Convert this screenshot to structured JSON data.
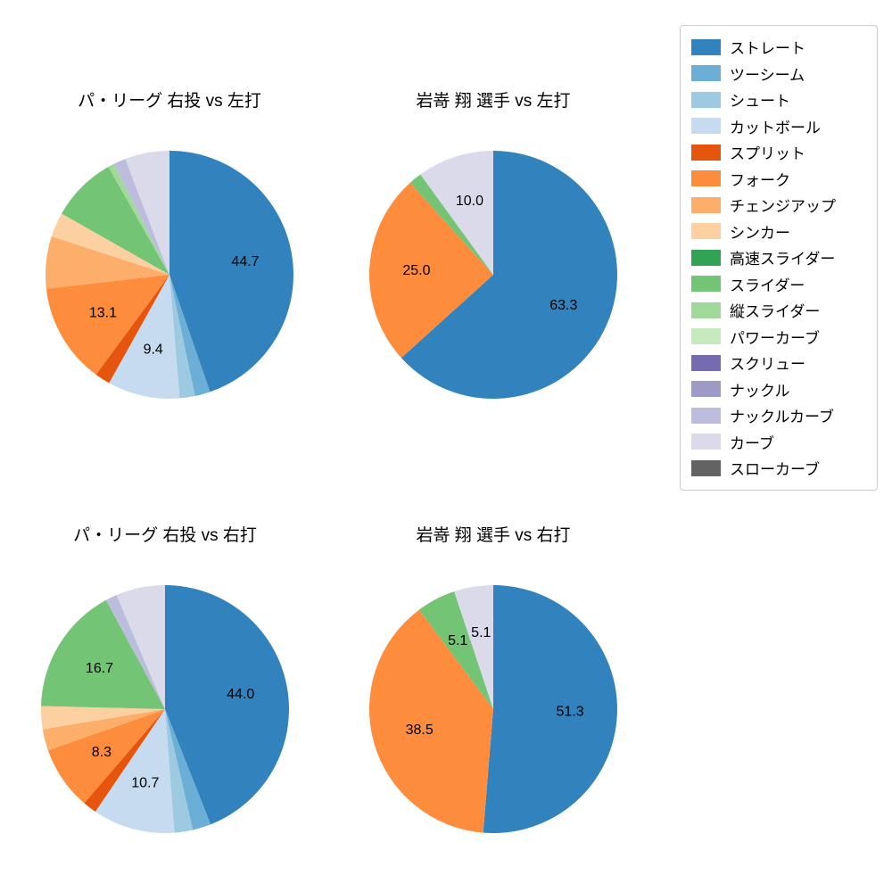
{
  "figure": {
    "background": "#ffffff"
  },
  "legend": {
    "position": "upper right",
    "items": [
      {
        "label": "ストレート",
        "color": "#3182bd"
      },
      {
        "label": "ツーシーム",
        "color": "#6baed6"
      },
      {
        "label": "シュート",
        "color": "#9ecae1"
      },
      {
        "label": "カットボール",
        "color": "#c6dbef"
      },
      {
        "label": "スプリット",
        "color": "#e6550d"
      },
      {
        "label": "フォーク",
        "color": "#fd8d3c"
      },
      {
        "label": "チェンジアップ",
        "color": "#fdae6b"
      },
      {
        "label": "シンカー",
        "color": "#fdd0a2"
      },
      {
        "label": "高速スライダー",
        "color": "#31a354"
      },
      {
        "label": "スライダー",
        "color": "#74c476"
      },
      {
        "label": "縦スライダー",
        "color": "#a1d99b"
      },
      {
        "label": "パワーカーブ",
        "color": "#c7e9c0"
      },
      {
        "label": "スクリュー",
        "color": "#756bb1"
      },
      {
        "label": "ナックル",
        "color": "#9e9ac8"
      },
      {
        "label": "ナックルカーブ",
        "color": "#bcbddc"
      },
      {
        "label": "カーブ",
        "color": "#dadaeb"
      },
      {
        "label": "スローカーブ",
        "color": "#636363"
      }
    ]
  },
  "chart_data": [
    {
      "type": "pie",
      "title": "パ・リーグ 右投 vs 左打",
      "start_angle": "top",
      "direction": "clockwise",
      "slices": [
        {
          "name": "ストレート",
          "value": 44.7,
          "label": "44.7"
        },
        {
          "name": "ツーシーム",
          "value": 2.0,
          "label": ""
        },
        {
          "name": "シュート",
          "value": 2.0,
          "label": ""
        },
        {
          "name": "カットボール",
          "value": 9.4,
          "label": "9.4"
        },
        {
          "name": "スプリット",
          "value": 2.0,
          "label": ""
        },
        {
          "name": "フォーク",
          "value": 13.1,
          "label": "13.1"
        },
        {
          "name": "チェンジアップ",
          "value": 6.8,
          "label": ""
        },
        {
          "name": "シンカー",
          "value": 3.2,
          "label": ""
        },
        {
          "name": "スライダー",
          "value": 8.6,
          "label": ""
        },
        {
          "name": "縦スライダー",
          "value": 0.8,
          "label": ""
        },
        {
          "name": "ナックルカーブ",
          "value": 1.6,
          "label": ""
        },
        {
          "name": "カーブ",
          "value": 5.8,
          "label": ""
        }
      ]
    },
    {
      "type": "pie",
      "title": "岩嵜 翔 選手 vs 左打",
      "start_angle": "top",
      "direction": "clockwise",
      "slices": [
        {
          "name": "ストレート",
          "value": 63.3,
          "label": "63.3"
        },
        {
          "name": "フォーク",
          "value": 25.0,
          "label": "25.0"
        },
        {
          "name": "スライダー",
          "value": 1.7,
          "label": ""
        },
        {
          "name": "カーブ",
          "value": 10.0,
          "label": "10.0"
        }
      ]
    },
    {
      "type": "pie",
      "title": "パ・リーグ 右投 vs 右打",
      "start_angle": "top",
      "direction": "clockwise",
      "slices": [
        {
          "name": "ストレート",
          "value": 44.0,
          "label": "44.0"
        },
        {
          "name": "ツーシーム",
          "value": 2.4,
          "label": ""
        },
        {
          "name": "シュート",
          "value": 2.4,
          "label": ""
        },
        {
          "name": "カットボール",
          "value": 10.7,
          "label": "10.7"
        },
        {
          "name": "スプリット",
          "value": 1.8,
          "label": ""
        },
        {
          "name": "フォーク",
          "value": 8.3,
          "label": "8.3"
        },
        {
          "name": "チェンジアップ",
          "value": 2.8,
          "label": ""
        },
        {
          "name": "シンカー",
          "value": 3.0,
          "label": ""
        },
        {
          "name": "スライダー",
          "value": 16.7,
          "label": "16.7"
        },
        {
          "name": "ナックルカーブ",
          "value": 1.5,
          "label": ""
        },
        {
          "name": "カーブ",
          "value": 6.4,
          "label": ""
        }
      ]
    },
    {
      "type": "pie",
      "title": "岩嵜 翔 選手 vs 右打",
      "start_angle": "top",
      "direction": "clockwise",
      "slices": [
        {
          "name": "ストレート",
          "value": 51.3,
          "label": "51.3"
        },
        {
          "name": "フォーク",
          "value": 38.5,
          "label": "38.5"
        },
        {
          "name": "スライダー",
          "value": 5.1,
          "label": "5.1"
        },
        {
          "name": "カーブ",
          "value": 5.1,
          "label": "5.1"
        }
      ]
    }
  ]
}
